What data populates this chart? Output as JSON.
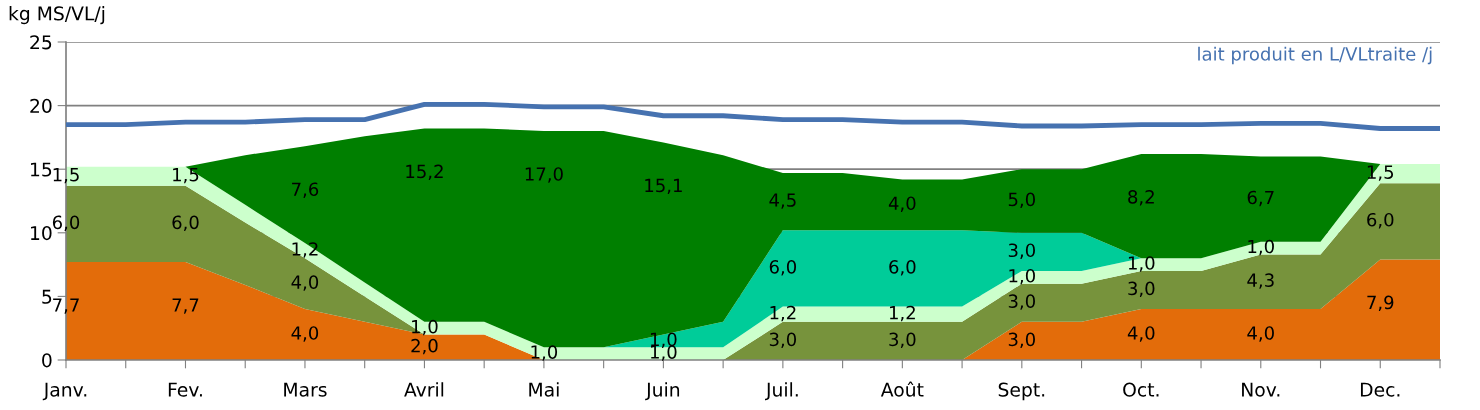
{
  "chart_data": {
    "type": "area",
    "stacked": true,
    "ylabel": "kg MS/VL/j",
    "categories": [
      "Janv.",
      null,
      "Fev.",
      null,
      "Mars",
      null,
      "Avril",
      null,
      "Mai",
      null,
      "Juin",
      null,
      "Juil.",
      null,
      "Août",
      null,
      "Sept.",
      null,
      "Oct.",
      null,
      "Nov.",
      null,
      "Dec.",
      null
    ],
    "ylim": [
      0,
      25
    ],
    "yticks": [
      0,
      5,
      10,
      15,
      20,
      25
    ],
    "grid": "y",
    "legend": false,
    "series": [
      {
        "color": "#e36c0a",
        "values": [
          7.7,
          7.7,
          7.7,
          5.9,
          4.0,
          3.0,
          2.0,
          2.0,
          0,
          0,
          0,
          0,
          0,
          0,
          0,
          0,
          3.0,
          3.0,
          4.0,
          4.0,
          4.0,
          4.0,
          7.9,
          7.9
        ],
        "value_labels": [
          "7,7",
          null,
          "7,7",
          null,
          "4,0",
          null,
          "2,0",
          null,
          null,
          null,
          null,
          null,
          null,
          null,
          null,
          null,
          "3,0",
          null,
          "4,0",
          null,
          "4,0",
          null,
          "7,9",
          null
        ]
      },
      {
        "color": "#77933c",
        "values": [
          6.0,
          6.0,
          6.0,
          4.9,
          4.0,
          2.0,
          0,
          0,
          0,
          0,
          0,
          0,
          3.0,
          3.0,
          3.0,
          3.0,
          3.0,
          3.0,
          3.0,
          3.0,
          4.3,
          4.3,
          6.0,
          6.0
        ],
        "value_labels": [
          "6,0",
          null,
          "6,0",
          null,
          "4,0",
          null,
          null,
          null,
          null,
          null,
          null,
          null,
          "3,0",
          null,
          "3,0",
          null,
          "3,0",
          null,
          "3,0",
          null,
          "4,3",
          null,
          "6,0",
          null
        ]
      },
      {
        "color": "#ccffcc",
        "values": [
          1.5,
          1.5,
          1.5,
          1.4,
          1.2,
          1.1,
          1.0,
          1.0,
          1.0,
          1.0,
          1.0,
          1.0,
          1.2,
          1.2,
          1.2,
          1.2,
          1.0,
          1.0,
          1.0,
          1.0,
          1.0,
          1.0,
          1.5,
          1.5
        ],
        "value_labels": [
          "1,5",
          null,
          "1,5",
          null,
          "1,2",
          null,
          "1,0",
          null,
          "1,0",
          null,
          "1,0",
          null,
          "1,2",
          null,
          "1,2",
          null,
          "1,0",
          null,
          "1,0",
          null,
          "1,0",
          null,
          "1,5",
          null
        ]
      },
      {
        "color": "#00cc99",
        "values": [
          0,
          0,
          0,
          0,
          0,
          0,
          0,
          0,
          0,
          0,
          1.0,
          2.0,
          6.0,
          6.0,
          6.0,
          6.0,
          3.0,
          3.0,
          0,
          0,
          0,
          0,
          0,
          0
        ],
        "value_labels": [
          null,
          null,
          null,
          null,
          null,
          null,
          null,
          null,
          null,
          null,
          "1,0",
          null,
          "6,0",
          null,
          "6,0",
          null,
          "3,0",
          null,
          null,
          null,
          null,
          null,
          null,
          null
        ]
      },
      {
        "color": "#007f00",
        "values": [
          0,
          0,
          0,
          3.9,
          7.6,
          11.5,
          15.2,
          15.2,
          17.0,
          17.0,
          15.1,
          13.1,
          4.5,
          4.5,
          4.0,
          4.0,
          5.0,
          5.0,
          8.2,
          8.2,
          6.7,
          6.7,
          0,
          0
        ],
        "value_labels": [
          null,
          null,
          null,
          null,
          "7,6",
          null,
          "15,2",
          null,
          "17,0",
          null,
          "15,1",
          null,
          "4,5",
          null,
          "4,0",
          null,
          "5,0",
          null,
          "8,2",
          null,
          "6,7",
          null,
          null,
          null
        ]
      },
      {
        "type": "line",
        "name": "lait produit en L/VLtraite /j",
        "color": "#4672b0",
        "values": [
          18.5,
          18.5,
          18.7,
          18.7,
          18.9,
          18.9,
          20.1,
          20.1,
          19.9,
          19.9,
          19.2,
          19.2,
          18.9,
          18.9,
          18.7,
          18.7,
          18.4,
          18.4,
          18.5,
          18.5,
          18.6,
          18.6,
          18.2,
          18.2
        ]
      }
    ]
  }
}
